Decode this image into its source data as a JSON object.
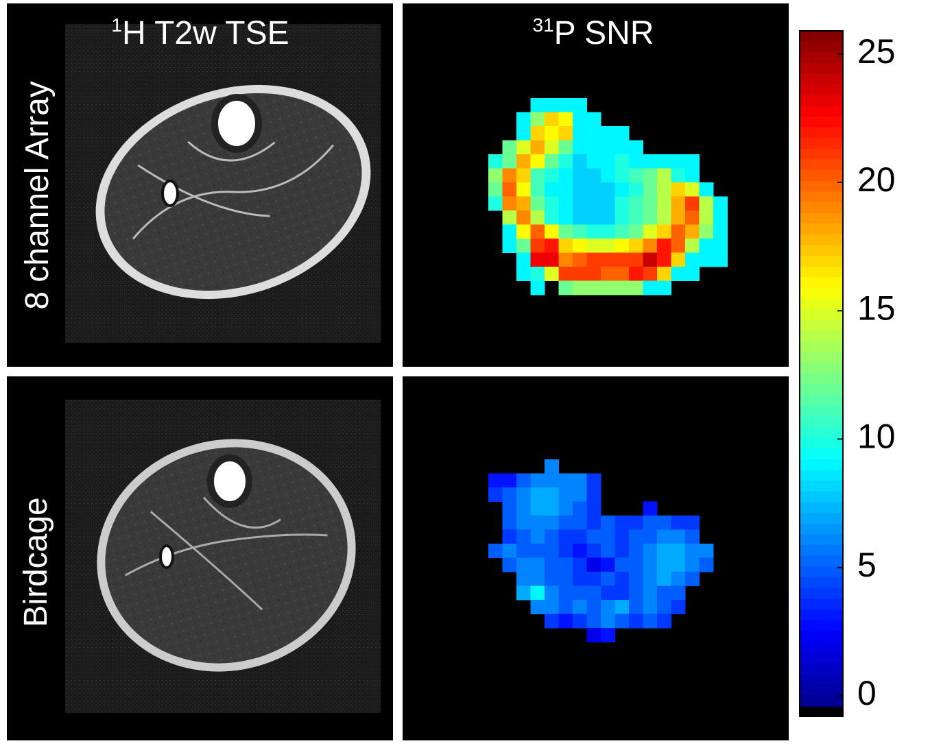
{
  "columns": [
    {
      "sup": "1",
      "label": "H T2w TSE"
    },
    {
      "sup": "31",
      "label": "P SNR"
    }
  ],
  "rows": [
    {
      "label": "8 channel Array",
      "snr_map": [
        [
          null,
          null,
          null,
          9,
          9,
          9,
          9,
          null,
          null,
          null,
          null,
          null,
          null,
          null,
          null,
          null,
          null
        ],
        [
          null,
          null,
          9,
          13,
          17,
          16,
          9,
          9,
          null,
          null,
          null,
          null,
          null,
          null,
          null,
          null,
          null
        ],
        [
          null,
          null,
          9,
          17,
          16,
          17,
          9,
          9,
          9,
          9,
          null,
          null,
          null,
          null,
          null,
          null,
          null
        ],
        [
          null,
          12,
          15,
          18,
          15,
          12,
          9,
          9,
          9,
          9,
          9,
          null,
          null,
          null,
          null,
          null,
          null
        ],
        [
          10,
          12,
          18,
          16,
          12,
          10,
          8,
          9,
          9,
          10,
          9,
          9,
          9,
          9,
          9,
          null,
          null
        ],
        [
          13,
          19,
          17,
          11,
          10,
          9,
          8,
          8,
          9,
          10,
          11,
          12,
          14,
          10,
          9,
          null,
          null
        ],
        [
          12,
          20,
          16,
          11,
          9,
          9,
          8,
          8,
          8,
          9,
          10,
          12,
          14,
          17,
          15,
          9,
          null
        ],
        [
          10,
          19,
          18,
          12,
          10,
          9,
          8,
          8,
          8,
          10,
          11,
          12,
          14,
          18,
          21,
          14,
          9
        ],
        [
          null,
          14,
          19,
          14,
          10,
          9,
          8,
          8,
          8,
          10,
          11,
          12,
          14,
          18,
          20,
          14,
          9
        ],
        [
          null,
          9,
          16,
          20,
          16,
          12,
          11,
          10,
          10,
          11,
          12,
          15,
          17,
          20,
          18,
          13,
          9
        ],
        [
          null,
          9,
          12,
          21,
          22,
          17,
          16,
          15,
          15,
          16,
          17,
          19,
          22,
          20,
          14,
          9,
          9
        ],
        [
          null,
          null,
          9,
          23,
          23,
          19,
          20,
          21,
          21,
          21,
          21,
          24,
          22,
          17,
          9,
          9,
          9
        ],
        [
          null,
          null,
          9,
          10,
          15,
          21,
          21,
          21,
          20,
          20,
          22,
          21,
          17,
          9,
          9,
          null,
          null
        ],
        [
          null,
          null,
          null,
          9,
          null,
          12,
          13,
          13,
          13,
          13,
          13,
          9,
          9,
          null,
          null,
          null,
          null
        ]
      ]
    },
    {
      "label": "Birdcage",
      "snr_map": [
        [
          null,
          null,
          null,
          null,
          6,
          null,
          null,
          null,
          null,
          null,
          null,
          null,
          null,
          null,
          null,
          null,
          null
        ],
        [
          3,
          3,
          5,
          6,
          6,
          6,
          6,
          4,
          null,
          null,
          null,
          null,
          null,
          null,
          null,
          null,
          null
        ],
        [
          4,
          5,
          6,
          7,
          7,
          6,
          6,
          4,
          null,
          null,
          null,
          null,
          null,
          null,
          null,
          null,
          null
        ],
        [
          null,
          5,
          6,
          7,
          7,
          6,
          5,
          4,
          null,
          null,
          null,
          3,
          null,
          null,
          null,
          null,
          null
        ],
        [
          null,
          5,
          6,
          6,
          6,
          5,
          5,
          4,
          5,
          4,
          4,
          5,
          5,
          4,
          4,
          null,
          null
        ],
        [
          null,
          4,
          5,
          6,
          5,
          4,
          4,
          5,
          5,
          4,
          5,
          5,
          6,
          6,
          5,
          null,
          null
        ],
        [
          5,
          6,
          5,
          5,
          5,
          4,
          3,
          4,
          5,
          4,
          5,
          6,
          7,
          7,
          6,
          6,
          null
        ],
        [
          null,
          5,
          6,
          6,
          5,
          5,
          4,
          2,
          3,
          5,
          5,
          6,
          7,
          7,
          6,
          5,
          null
        ],
        [
          null,
          null,
          6,
          6,
          5,
          5,
          4,
          4,
          5,
          4,
          5,
          6,
          7,
          6,
          5,
          null,
          null
        ],
        [
          null,
          null,
          7,
          9,
          6,
          5,
          5,
          5,
          4,
          4,
          5,
          6,
          5,
          5,
          null,
          null,
          null
        ],
        [
          null,
          null,
          null,
          6,
          6,
          5,
          6,
          5,
          6,
          7,
          5,
          6,
          5,
          4,
          null,
          null,
          null
        ],
        [
          null,
          null,
          null,
          null,
          4,
          3,
          4,
          5,
          6,
          5,
          4,
          5,
          4,
          null,
          null,
          null,
          null
        ],
        [
          null,
          null,
          null,
          null,
          null,
          null,
          null,
          2,
          3,
          null,
          null,
          null,
          null,
          null,
          null,
          null,
          null
        ]
      ]
    }
  ],
  "colorbar": {
    "colormap": "jet",
    "lim": [
      -0.8,
      25.9
    ],
    "ticks": [
      0,
      5,
      10,
      15,
      20,
      25
    ]
  }
}
